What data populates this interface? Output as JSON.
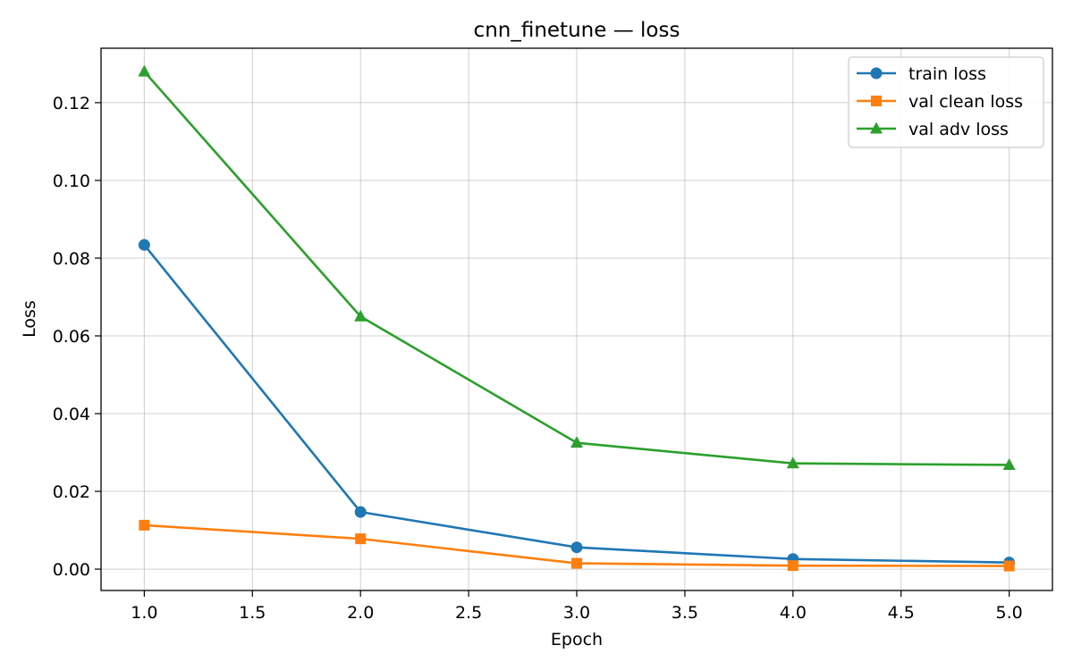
{
  "chart_data": {
    "type": "line",
    "title": "cnn_finetune — loss",
    "xlabel": "Epoch",
    "ylabel": "Loss",
    "x": [
      1,
      2,
      3,
      4,
      5
    ],
    "xlim": [
      0.8,
      5.2
    ],
    "ylim": [
      -0.0055,
      0.134
    ],
    "xticks": [
      "1.0",
      "1.5",
      "2.0",
      "2.5",
      "3.0",
      "3.5",
      "4.0",
      "4.5",
      "5.0"
    ],
    "xtick_values": [
      1.0,
      1.5,
      2.0,
      2.5,
      3.0,
      3.5,
      4.0,
      4.5,
      5.0
    ],
    "yticks": [
      "0.00",
      "0.02",
      "0.04",
      "0.06",
      "0.08",
      "0.10",
      "0.12"
    ],
    "ytick_values": [
      0.0,
      0.02,
      0.04,
      0.06,
      0.08,
      0.1,
      0.12
    ],
    "grid": true,
    "legend_position": "top-right",
    "series": [
      {
        "name": "train loss",
        "color": "#1f77b4",
        "marker": "circle",
        "values": [
          0.0834,
          0.0147,
          0.0056,
          0.0026,
          0.0017
        ]
      },
      {
        "name": "val clean loss",
        "color": "#ff7f0e",
        "marker": "square",
        "values": [
          0.0113,
          0.0078,
          0.0015,
          0.0009,
          0.0008
        ]
      },
      {
        "name": "val adv loss",
        "color": "#2ca02c",
        "marker": "triangle",
        "values": [
          0.128,
          0.065,
          0.0325,
          0.0272,
          0.0268
        ]
      }
    ]
  }
}
